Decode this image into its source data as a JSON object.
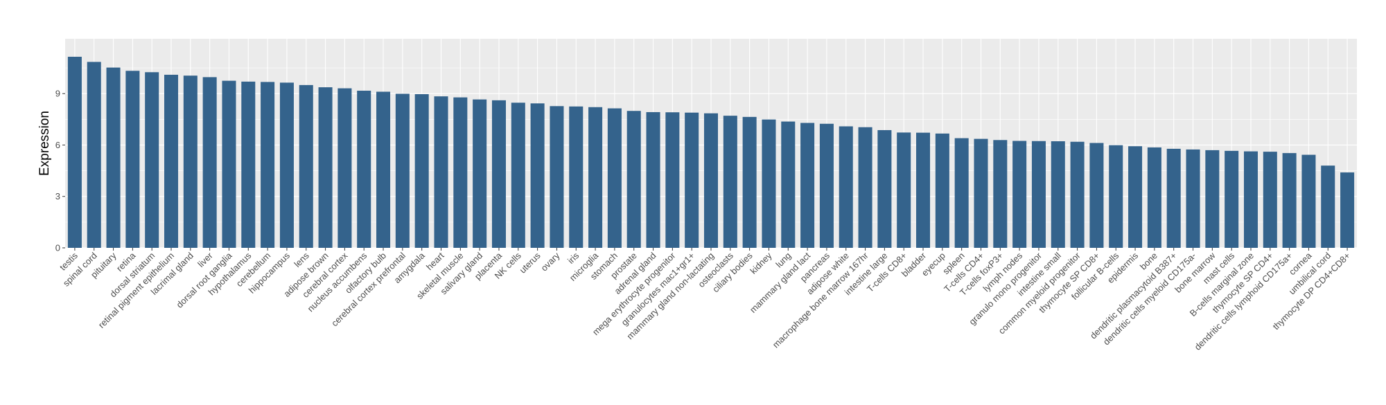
{
  "chart_data": {
    "type": "bar",
    "title": "",
    "xlabel": "",
    "ylabel": "Expression",
    "ylim": [
      0,
      12.2
    ],
    "yticks": [
      0,
      3,
      6,
      9
    ],
    "grid": true,
    "legend": "none",
    "colors": {
      "bar": "#34638c",
      "panel": "#ebebeb",
      "grid": "#ffffff",
      "tick_text": "#4d4d4d",
      "axis_title": "#000000"
    },
    "categories": [
      "testis",
      "spinal cord",
      "pituitary",
      "retina",
      "dorsal striatum",
      "retinal pigment epithelium",
      "lacrimal gland",
      "liver",
      "dorsal root ganglia",
      "hypothalamus",
      "cerebellum",
      "hippocampus",
      "lens",
      "adipose brown",
      "cerebral cortex",
      "nucleus accumbens",
      "olfactory bulb",
      "cerebral cortex prefrontal",
      "amygdala",
      "heart",
      "skeletal muscle",
      "salivary gland",
      "placenta",
      "NK cells",
      "uterus",
      "ovary",
      "iris",
      "microglia",
      "stomach",
      "prostate",
      "adrenal gland",
      "mega erythrocyte progenitor",
      "granulocytes mac1+gr1+",
      "mammary gland non-lactating",
      "osteoclasts",
      "ciliary bodies",
      "kidney",
      "lung",
      "mammary gland lact",
      "pancreas",
      "adipose white",
      "macrophage bone marrow 167hr",
      "intestine large",
      "T-cells CD8+",
      "bladder",
      "eyecup",
      "spleen",
      "T-cells CD4+",
      "T-cells foxP3+",
      "lymph nodes",
      "granulo mono progenitor",
      "intestine small",
      "common myeloid progenitor",
      "thymocyte SP CD8+",
      "follicular B-cells",
      "epidermis",
      "bone",
      "dendritic plasmacytoid B387+",
      "dendritic cells myeloid CD175a-",
      "bone marrow",
      "mast cells",
      "B-cells marginal zone",
      "thymocyte SP CD4+",
      "dendritic cells lymphoid CD175a+",
      "cornea",
      "umbilical cord",
      "thymocyte DP CD4+CD8+"
    ],
    "values": [
      11.15,
      10.85,
      10.52,
      10.33,
      10.25,
      10.1,
      10.05,
      9.96,
      9.75,
      9.7,
      9.68,
      9.64,
      9.5,
      9.37,
      9.31,
      9.17,
      9.11,
      8.99,
      8.97,
      8.84,
      8.78,
      8.66,
      8.61,
      8.47,
      8.43,
      8.27,
      8.25,
      8.21,
      8.14,
      7.99,
      7.92,
      7.91,
      7.89,
      7.85,
      7.71,
      7.64,
      7.49,
      7.37,
      7.29,
      7.24,
      7.09,
      7.04,
      6.87,
      6.73,
      6.72,
      6.67,
      6.4,
      6.36,
      6.29,
      6.24,
      6.23,
      6.22,
      6.19,
      6.12,
      5.99,
      5.93,
      5.86,
      5.78,
      5.74,
      5.7,
      5.66,
      5.63,
      5.61,
      5.53,
      5.43,
      4.8,
      4.4
    ]
  }
}
